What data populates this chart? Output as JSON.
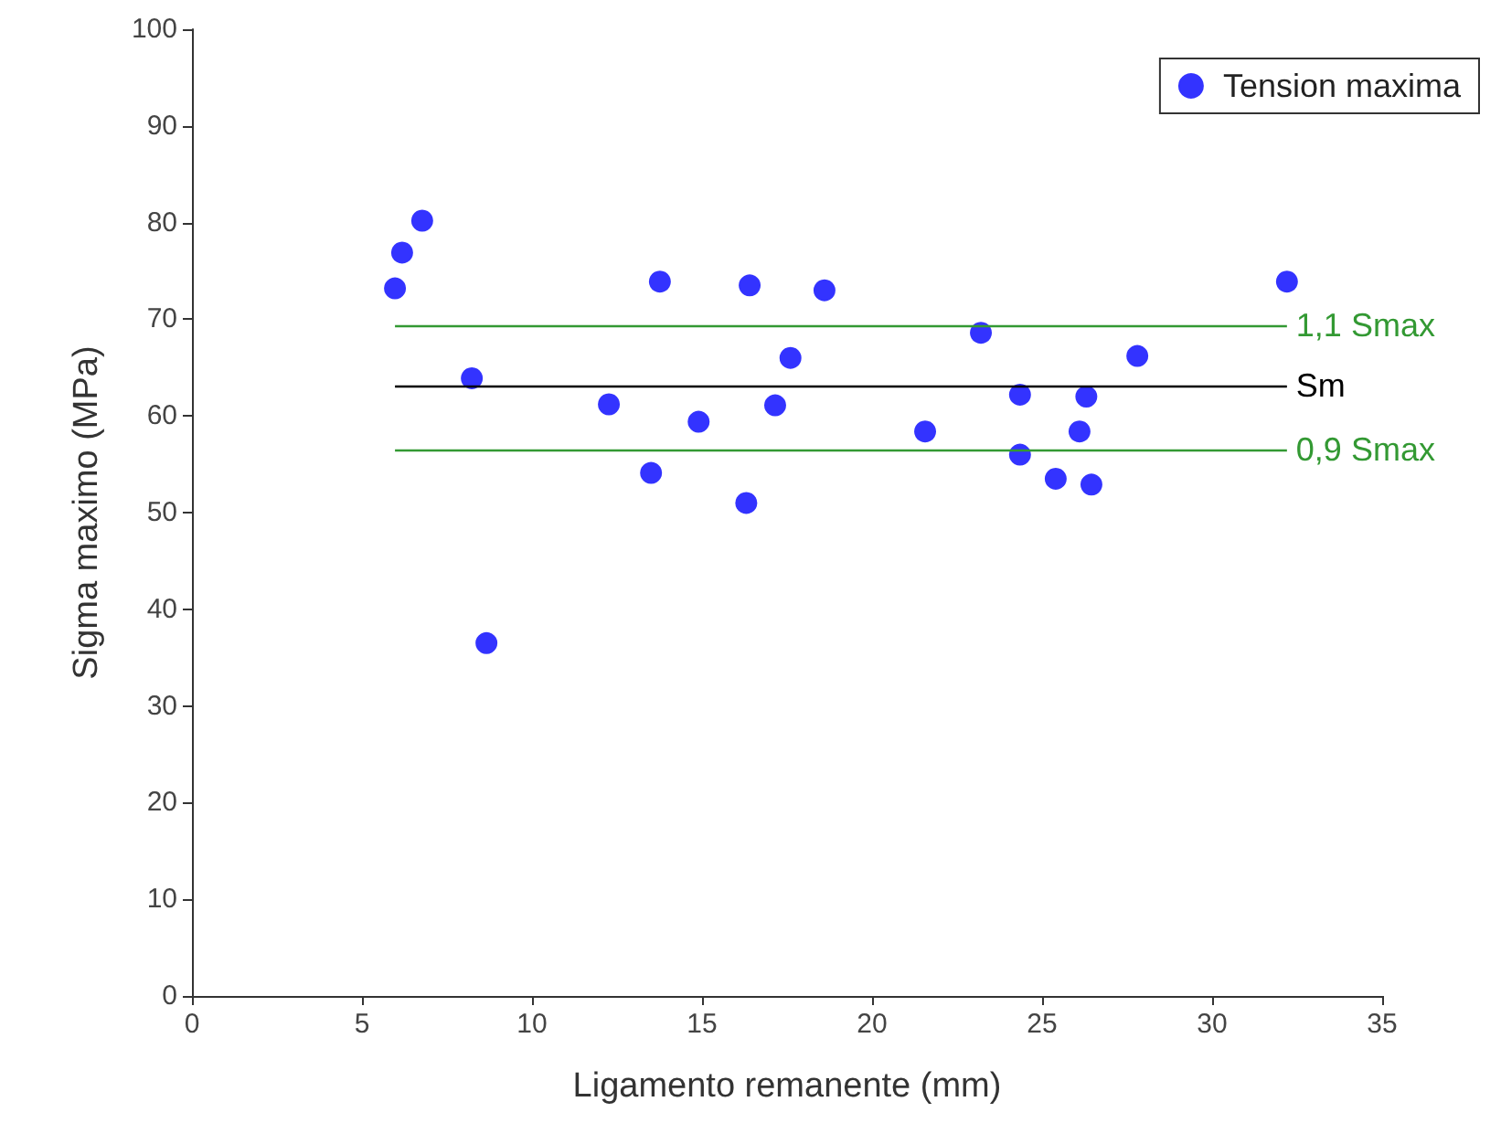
{
  "chart_data": {
    "type": "scatter",
    "xlabel": "Ligamento remanente (mm)",
    "ylabel": "Sigma maximo (MPa)",
    "x": [
      5.97,
      6.18,
      6.77,
      8.23,
      8.66,
      12.26,
      13.5,
      13.76,
      14.9,
      16.3,
      16.4,
      17.15,
      17.6,
      18.6,
      21.56,
      23.2,
      24.35,
      24.35,
      25.4,
      26.1,
      26.3,
      26.45,
      27.8,
      32.2
    ],
    "series": [
      {
        "name": "Tension maxima",
        "color": "#0000ff",
        "values": [
          73.2,
          76.9,
          80.2,
          63.9,
          36.5,
          61.2,
          54.1,
          73.9,
          59.4,
          51.0,
          73.5,
          61.1,
          66.0,
          73.0,
          58.4,
          68.6,
          62.2,
          56.0,
          53.5,
          58.4,
          62.0,
          52.9,
          66.2,
          73.9
        ]
      }
    ],
    "marker": "circle",
    "legend": "top right",
    "grid": false,
    "xlim": [
      0,
      35
    ],
    "xticks": [
      0,
      5,
      10,
      15,
      20,
      25,
      30,
      35
    ],
    "ylim": [
      0,
      100
    ],
    "yticks": [
      0,
      10,
      20,
      30,
      40,
      50,
      60,
      70,
      80,
      90,
      100
    ],
    "ref_lines": [
      {
        "axis": "y",
        "value": 69.4,
        "label": "1,1 Smax",
        "color": "#339933"
      },
      {
        "axis": "y",
        "value": 63.1,
        "label": "Sm",
        "color": "#000000"
      },
      {
        "axis": "y",
        "value": 56.5,
        "label": "0,9 Smax",
        "color": "#339933"
      }
    ]
  }
}
